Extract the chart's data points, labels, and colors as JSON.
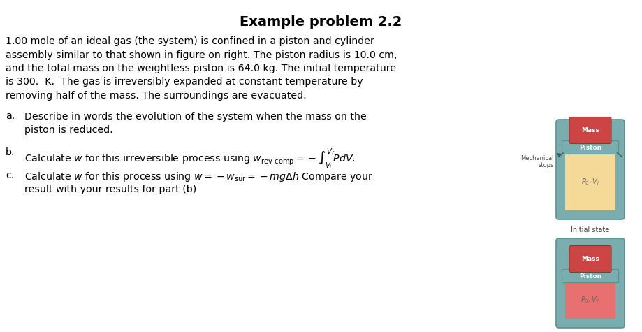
{
  "title": "Example problem 2.2",
  "background_color": "#ffffff",
  "text_color": "#000000",
  "para_line1": "1.00 mole of an ideal gas (the system) is confined in a piston and cylinder",
  "para_line2": "assembly similar to that shown in figure on right. The piston radius is 10.0 cm,",
  "para_line3": "and the total mass on the weightless piston is 64.0 kg. The initial temperature",
  "para_line4": "is 300.  K.  The gas is irreversibly expanded at constant temperature by",
  "para_line5": "removing half of the mass. The surroundings are evacuated.",
  "item_a_label": "a.",
  "item_a_line1": "Describe in words the evolution of the system when the mass on the",
  "item_a_line2": "piston is reduced.",
  "item_b_label": "b.",
  "item_c_label": "c.",
  "item_c_line2": "result with your results for part (b)",
  "mechanical_stops_label": "Mechanical\nstops",
  "initial_state_label": "Initial state",
  "mass_label": "Mass",
  "piston_label": "Piston",
  "cylinder_wall_color": "#7aadad",
  "cylinder_edge_color": "#5a9090",
  "gas_color_initial": "#f5d999",
  "gas_color_final": "#e87070",
  "mass_color": "#cc4444",
  "mass_edge_color": "#993333",
  "piston_color": "#7aadad",
  "gas_label_color": "#666666",
  "annotation_color": "#444444"
}
